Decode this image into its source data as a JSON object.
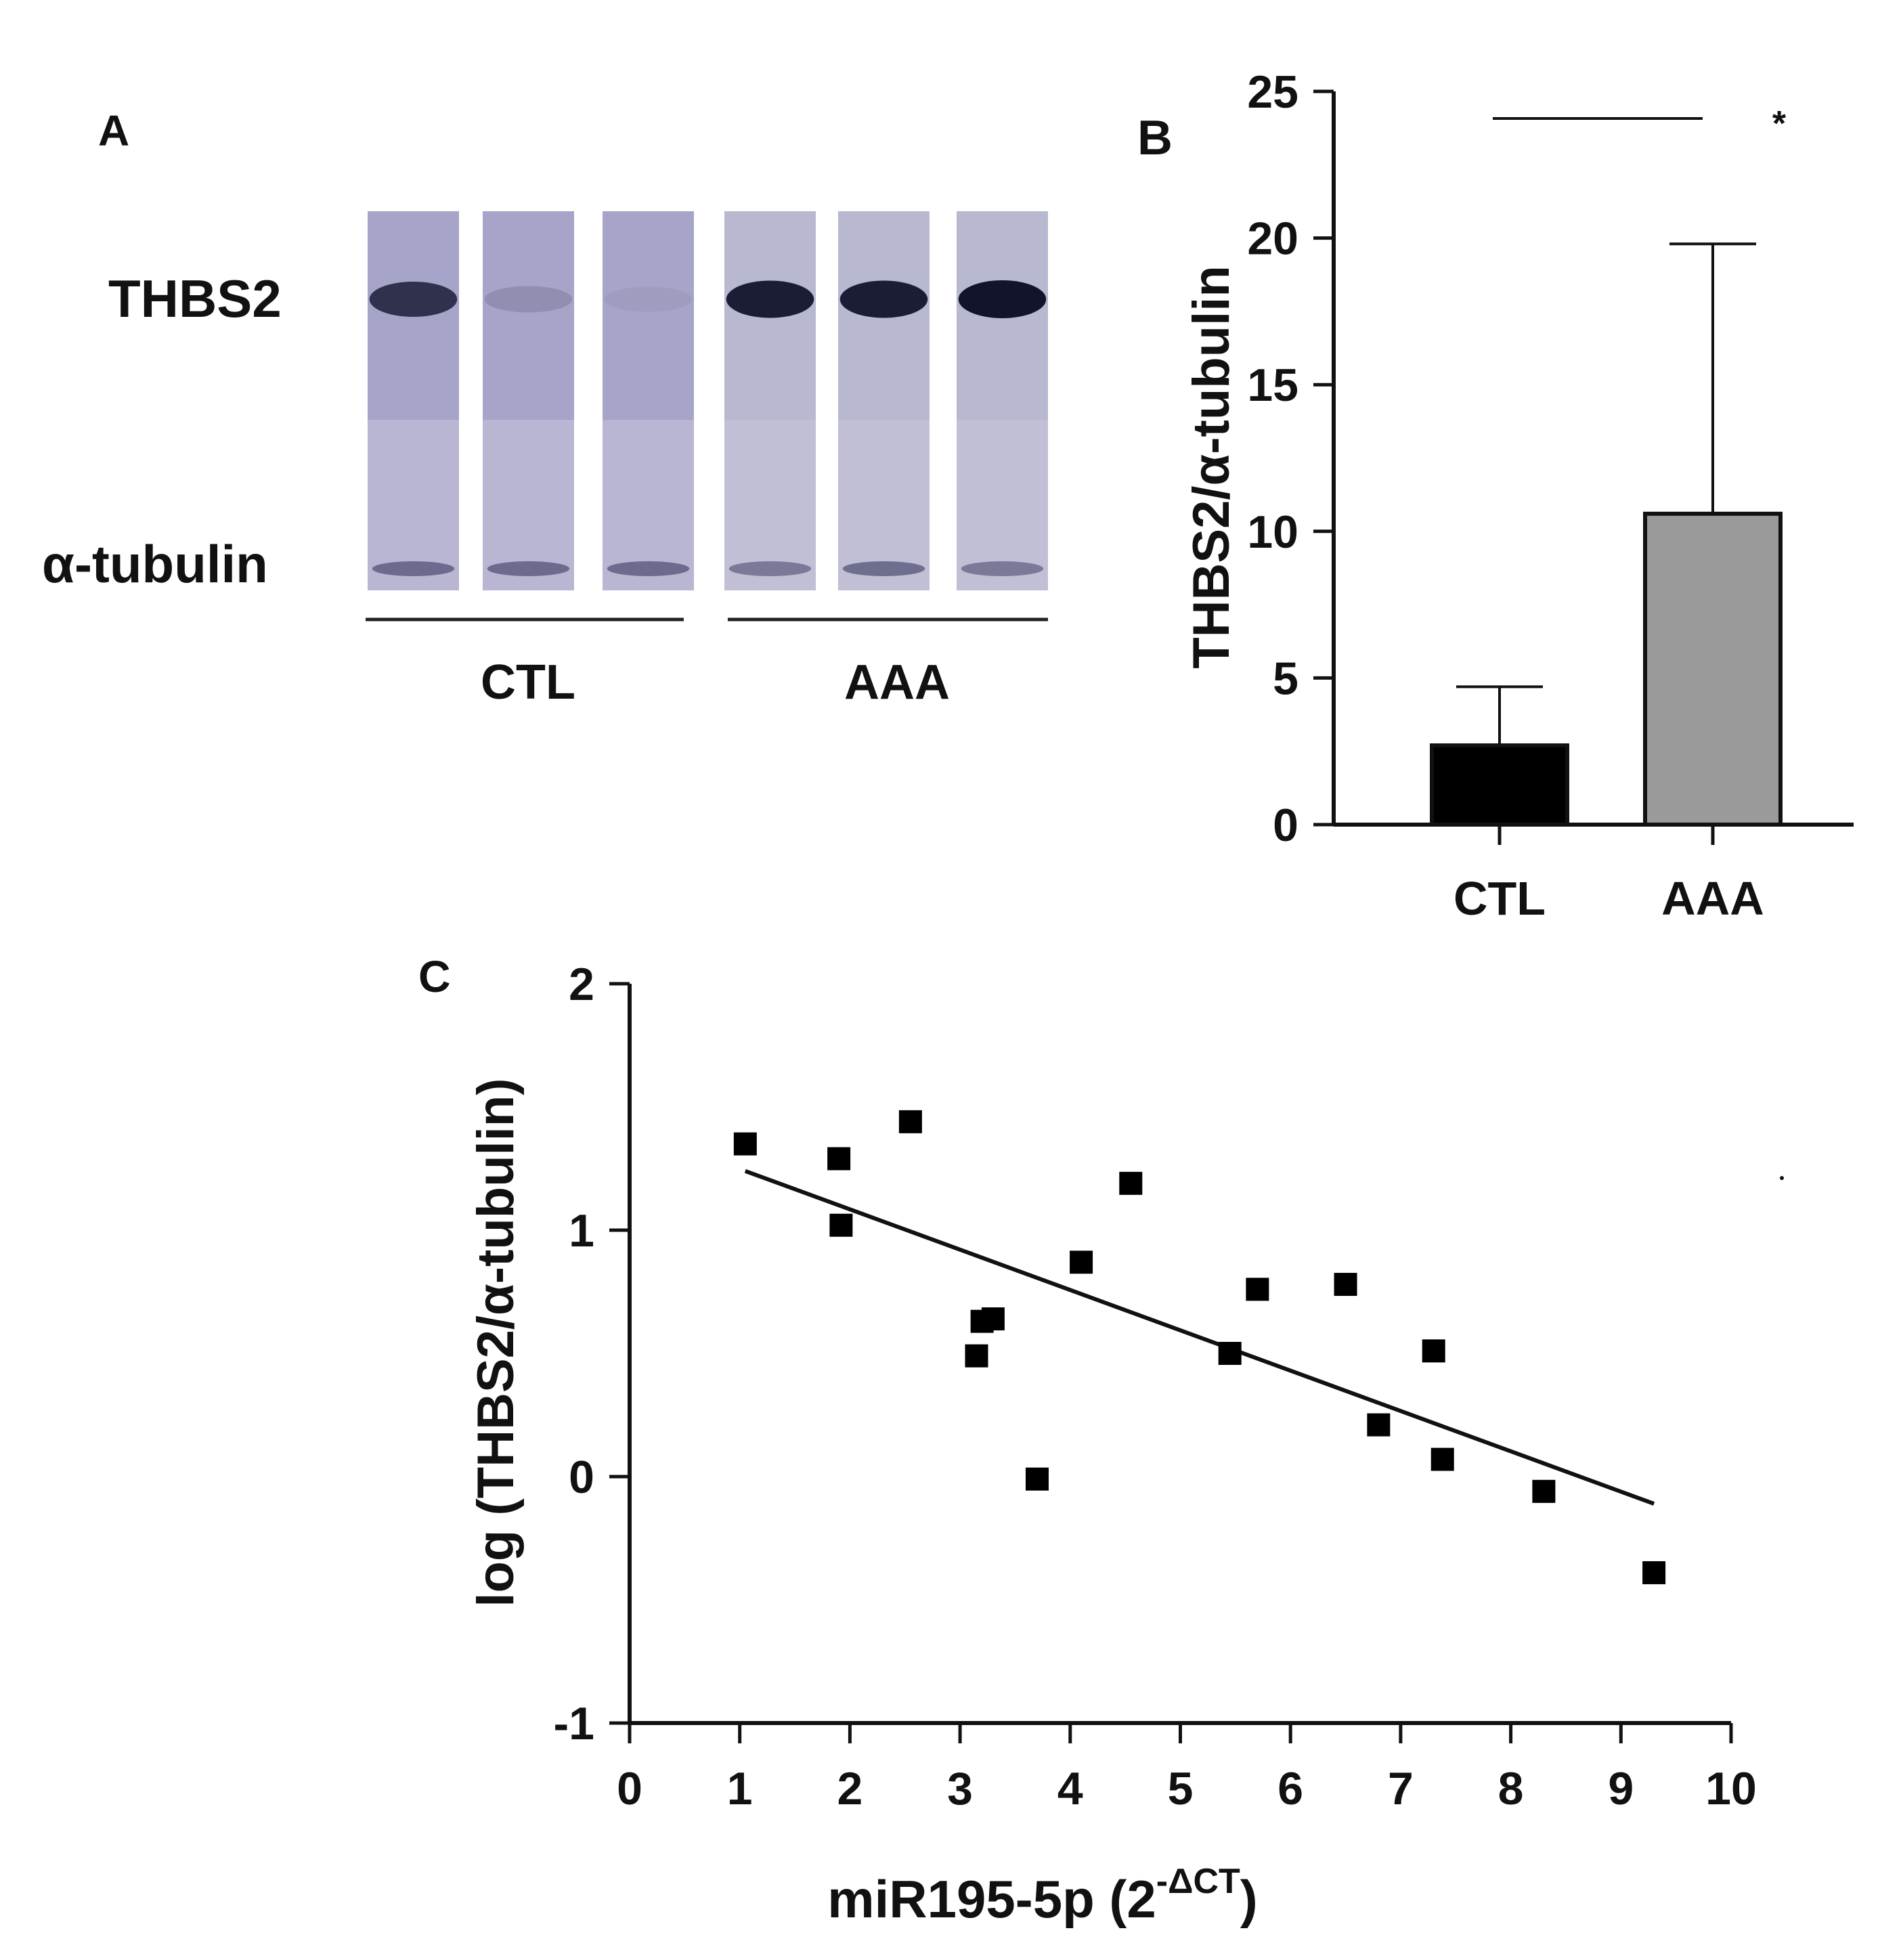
{
  "panel_a": {
    "label": "A",
    "band_labels": {
      "thbs2": "THBS2",
      "tubulin": "α-tubulin"
    },
    "groups": [
      "CTL",
      "AAA"
    ],
    "lanes": [
      {
        "group": "CTL",
        "thbs2_intensity": 0.8,
        "tubulin_intensity": 0.3
      },
      {
        "group": "CTL",
        "thbs2_intensity": 0.15,
        "tubulin_intensity": 0.3
      },
      {
        "group": "CTL",
        "thbs2_intensity": 0.05,
        "tubulin_intensity": 0.3
      },
      {
        "group": "AAA",
        "thbs2_intensity": 0.95,
        "tubulin_intensity": 0.2
      },
      {
        "group": "AAA",
        "thbs2_intensity": 0.95,
        "tubulin_intensity": 0.3
      },
      {
        "group": "AAA",
        "thbs2_intensity": 1.0,
        "tubulin_intensity": 0.2
      }
    ]
  },
  "chart_data": [
    {
      "panel": "B",
      "type": "bar",
      "categories": [
        "CTL",
        "AAA"
      ],
      "values": [
        2.7,
        10.6
      ],
      "errors": [
        2.0,
        9.2
      ],
      "colors": [
        "#000000",
        "#9a9a9a"
      ],
      "title": "",
      "xlabel": "",
      "ylabel": "THBS2/α-tubulin",
      "ylim": [
        0,
        25
      ],
      "yticks": [
        "0",
        "5",
        "10",
        "15",
        "20",
        "25"
      ],
      "significance": "*"
    },
    {
      "panel": "C",
      "type": "scatter",
      "points": [
        {
          "x": 1.05,
          "y": 1.35
        },
        {
          "x": 1.9,
          "y": 1.29
        },
        {
          "x": 1.92,
          "y": 1.02
        },
        {
          "x": 2.55,
          "y": 1.44
        },
        {
          "x": 3.15,
          "y": 0.49
        },
        {
          "x": 3.2,
          "y": 0.63
        },
        {
          "x": 3.3,
          "y": 0.64
        },
        {
          "x": 3.7,
          "y": -0.01
        },
        {
          "x": 4.1,
          "y": 0.87
        },
        {
          "x": 4.55,
          "y": 1.19
        },
        {
          "x": 5.45,
          "y": 0.5
        },
        {
          "x": 5.7,
          "y": 0.76
        },
        {
          "x": 6.5,
          "y": 0.78
        },
        {
          "x": 6.8,
          "y": 0.21
        },
        {
          "x": 7.3,
          "y": 0.51
        },
        {
          "x": 7.38,
          "y": 0.07
        },
        {
          "x": 8.3,
          "y": -0.06
        },
        {
          "x": 9.3,
          "y": -0.39
        }
      ],
      "fit_line": {
        "x": [
          1.05,
          9.3
        ],
        "y": [
          1.24,
          -0.11
        ]
      },
      "title": "",
      "xlabel": "miR195-5p (2",
      "xlabel_superscript": "-ΔCT",
      "xlabel_close": ")",
      "ylabel": "log (THBS2/α-tubulin)",
      "xlim": [
        0,
        10
      ],
      "ylim": [
        -1,
        2
      ],
      "xticks": [
        "0",
        "1",
        "2",
        "3",
        "4",
        "5",
        "6",
        "7",
        "8",
        "9",
        "10"
      ],
      "yticks": [
        "-1",
        "0",
        "1",
        "2"
      ]
    }
  ]
}
